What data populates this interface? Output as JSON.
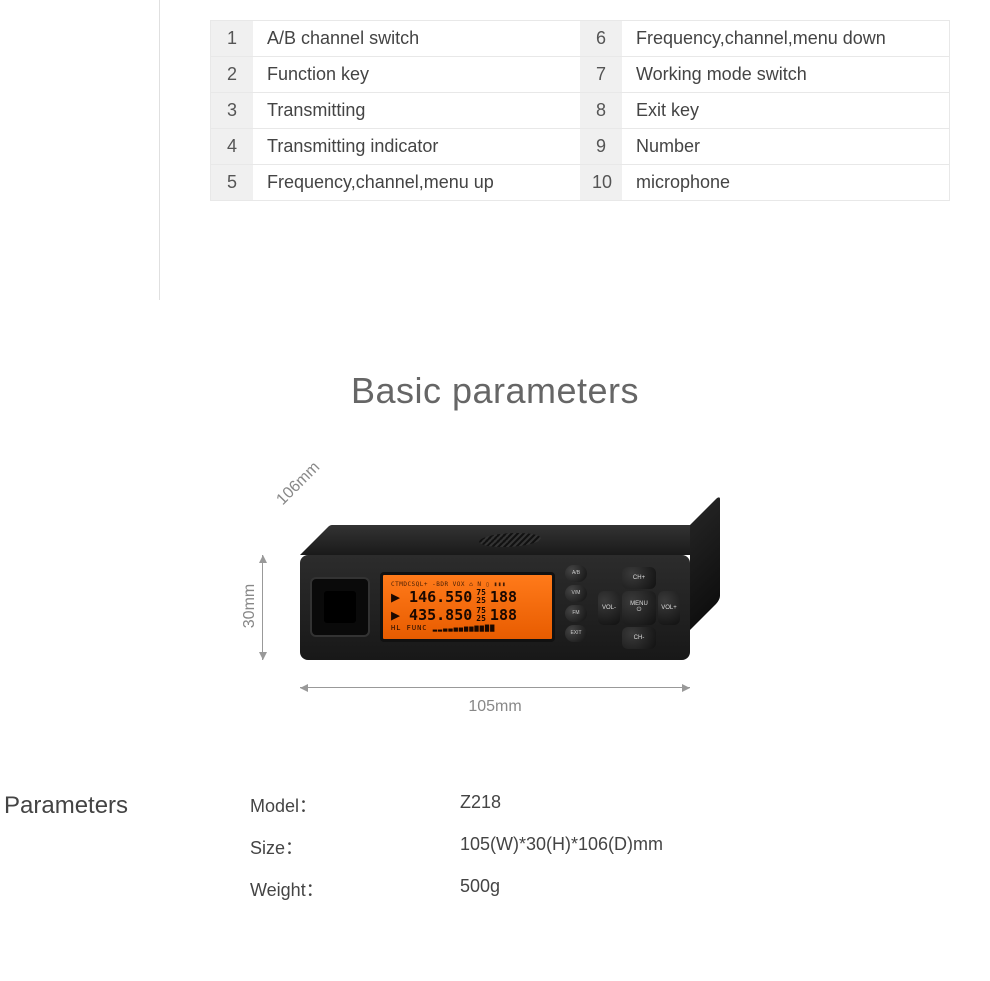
{
  "legend": {
    "rows": [
      {
        "n1": "1",
        "t1": "A/B channel switch",
        "n2": "6",
        "t2": "Frequency,channel,menu down"
      },
      {
        "n1": "2",
        "t1": "Function key",
        "n2": "7",
        "t2": "Working mode switch"
      },
      {
        "n1": "3",
        "t1": "Transmitting",
        "n2": "8",
        "t2": "Exit key"
      },
      {
        "n1": "4",
        "t1": "Transmitting indicator",
        "n2": "9",
        "t2": "Number"
      },
      {
        "n1": "5",
        "t1": "Frequency,channel,menu up",
        "n2": "10",
        "t2": "microphone"
      }
    ],
    "style": {
      "num_bg": "#f0f0f0",
      "border": "#e8e8e8",
      "font_size": 18,
      "text_color": "#444444"
    }
  },
  "title": "Basic parameters",
  "title_style": {
    "font_size": 36,
    "color": "#666666",
    "weight": 300
  },
  "dimensions": {
    "depth": "106mm",
    "height": "30mm",
    "width": "105mm"
  },
  "device": {
    "body_color": "#1e1e1e",
    "lcd_bg": "#f26a0a",
    "lcd_icons": "CTMDCSQL+ -BDR VOX ⌂ N ▯ ▮▮▮",
    "freq_a": "▶ 146.550",
    "freq_a_suffix_top": "75",
    "freq_a_suffix_bot": "25",
    "freq_a_mem": "188",
    "freq_b": "▶ 435.850",
    "freq_b_suffix_top": "75",
    "freq_b_suffix_bot": "25",
    "freq_b_mem": "188",
    "lcd_bars": "HL  FUNC  ▂▂▃▃▄▄▅▅▆▆▇▇",
    "side_buttons": [
      "A/B",
      "V/M",
      "FM",
      "EXIT"
    ],
    "dpad": {
      "up": "CH+",
      "down": "CH-",
      "left": "VOL-",
      "right": "VOL+",
      "center_top": "MENU",
      "center_icon": "⏻"
    }
  },
  "params_heading": "Parameters",
  "params": [
    {
      "k": "Model：",
      "v": "Z218"
    },
    {
      "k": "Size：",
      "v": "105(W)*30(H)*106(D)mm"
    },
    {
      "k": "Weight：",
      "v": "500g"
    }
  ],
  "params_style": {
    "heading_fontsize": 24,
    "row_fontsize": 18,
    "color": "#444444"
  }
}
